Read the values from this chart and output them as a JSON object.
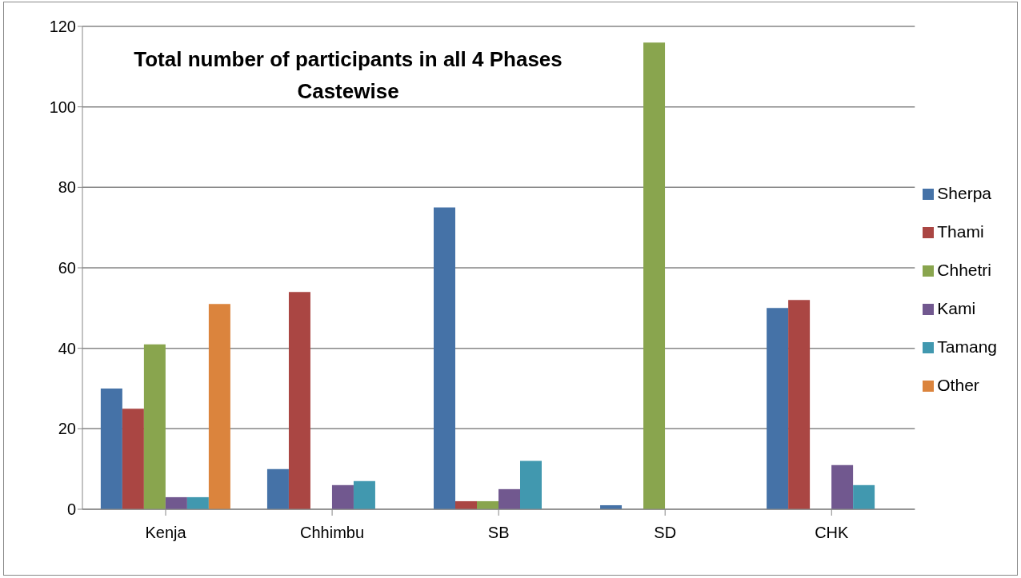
{
  "chart_data": {
    "type": "bar",
    "title": "Total number of participants in all 4 Phases Castewise",
    "categories": [
      "Kenja",
      "Chhimbu",
      "SB",
      "SD",
      "CHK"
    ],
    "series": [
      {
        "name": "Sherpa",
        "color": "#4572a7",
        "values": [
          30,
          10,
          75,
          1,
          50
        ]
      },
      {
        "name": "Thami",
        "color": "#aa4643",
        "values": [
          25,
          54,
          2,
          0,
          52
        ]
      },
      {
        "name": "Chhetri",
        "color": "#89a54e",
        "values": [
          41,
          0,
          2,
          116,
          0
        ]
      },
      {
        "name": "Kami",
        "color": "#71588f",
        "values": [
          3,
          6,
          5,
          0,
          11
        ]
      },
      {
        "name": "Tamang",
        "color": "#4198af",
        "values": [
          3,
          7,
          12,
          0,
          6
        ]
      },
      {
        "name": "Other",
        "color": "#db843d",
        "values": [
          51,
          0,
          0,
          0,
          0
        ]
      }
    ],
    "ylim": [
      0,
      120
    ],
    "yticks": [
      0,
      20,
      40,
      60,
      80,
      100,
      120
    ],
    "grid": "y",
    "legend": "right"
  }
}
